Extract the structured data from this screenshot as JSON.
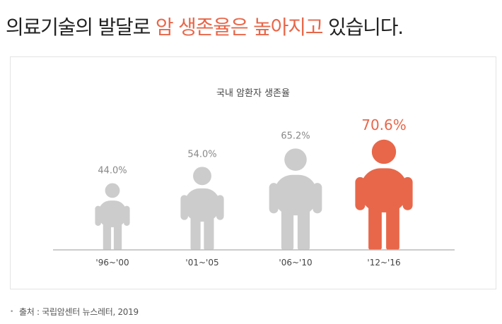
{
  "headline": {
    "pre": "의료기술의 발달로 ",
    "highlight": "암 생존율은 높아지고",
    "post": " 있습니다."
  },
  "colors": {
    "accent": "#e8674a",
    "figure": "#cccccc",
    "value_text": "#888888",
    "axis": "#bbbbbb"
  },
  "chart_data": {
    "type": "bar",
    "title": "국내 암환자 생존율",
    "categories": [
      "'96~'00",
      "'01~'05",
      "'06~'10",
      "'12~'16"
    ],
    "values": [
      44.0,
      54.0,
      65.2,
      70.6
    ],
    "value_labels": [
      "44.0%",
      "54.0%",
      "65.2%",
      "70.6%"
    ],
    "highlight_index": 3,
    "unit": "%",
    "mark": "person-icon"
  },
  "source": {
    "bullet": "•",
    "text": "출처 : 국립암센터 뉴스레터, 2019"
  }
}
